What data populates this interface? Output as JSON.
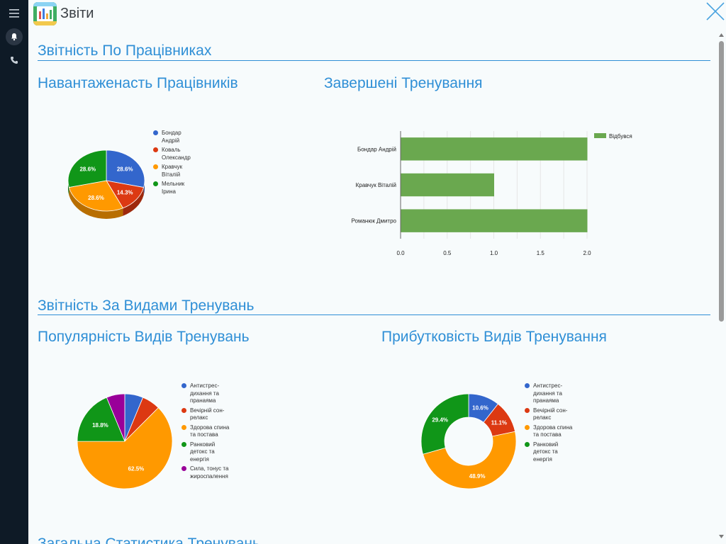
{
  "app": {
    "title": "Звіти"
  },
  "sections": [
    {
      "title": "Звітність По Працівниках"
    },
    {
      "title": "Звітність За Видами Тренувань"
    },
    {
      "title": "Загальна Статистика Тренувань"
    }
  ],
  "colors": {
    "blue": "#3366cc",
    "red": "#dc3912",
    "orange": "#ff9900",
    "green": "#109618",
    "purple": "#990099",
    "bar": "#6aa84f",
    "accent": "#2f8fd6"
  },
  "icons": {
    "menu": "menu-icon",
    "bell": "bell-icon",
    "phone": "phone-icon",
    "close": "close-icon"
  },
  "chart_data": [
    {
      "type": "pie",
      "title": "Навантаженасть Працівників",
      "slices": [
        {
          "name": "Бондар Андрій",
          "lines": [
            "Бондар",
            "Андрій"
          ],
          "percent": 28.6,
          "label": "28.6%"
        },
        {
          "name": "Коваль Олександр",
          "lines": [
            "Коваль",
            "Олександр"
          ],
          "percent": 14.3,
          "label": "14.3%"
        },
        {
          "name": "Кравчук Віталій",
          "lines": [
            "Кравчук",
            "Віталій"
          ],
          "percent": 28.6,
          "label": "28.6%"
        },
        {
          "name": "Мельник Ірина",
          "lines": [
            "Мельник",
            "Ірина"
          ],
          "percent": 28.6,
          "label": "28.6%"
        }
      ],
      "style": "3d",
      "legend": "right"
    },
    {
      "type": "bar",
      "orientation": "horizontal",
      "title": "Завершені Тренування",
      "categories": [
        "Бондар Андрій",
        "Кравчук Віталій",
        "Романюк Дмитро"
      ],
      "series": [
        {
          "name": "Відбувся",
          "values": [
            2,
            1,
            2
          ]
        }
      ],
      "xlim": [
        0,
        2
      ],
      "xticks": [
        "0.0",
        "0.5",
        "1.0",
        "1.5",
        "2.0"
      ],
      "grid": true,
      "legend": "top-right"
    },
    {
      "type": "pie",
      "title": "Популярність Видів Тренувань",
      "slices": [
        {
          "name": "Антистрес-дихання та пранаяма",
          "lines": [
            "Антистрес-",
            "дихання та",
            "пранаяма"
          ],
          "percent": 6.25,
          "label": ""
        },
        {
          "name": "Вечірній сон-релакс",
          "lines": [
            "Вечірній сон-",
            "релакс"
          ],
          "percent": 6.25,
          "label": ""
        },
        {
          "name": "Здорова спина та постава",
          "lines": [
            "Здорова спина",
            "та постава"
          ],
          "percent": 62.5,
          "label": "62.5%"
        },
        {
          "name": "Ранковий детокс та енергія",
          "lines": [
            "Ранковий",
            "детокс та",
            "енергія"
          ],
          "percent": 18.8,
          "label": "18.8%"
        },
        {
          "name": "Сила, тонус та жироспалення",
          "lines": [
            "Сила, тонус та",
            "жироспалення"
          ],
          "percent": 6.25,
          "label": ""
        }
      ],
      "legend": "right"
    },
    {
      "type": "pie",
      "donut": true,
      "title": "Прибутковість Видів Тренування",
      "slices": [
        {
          "name": "Антистрес-дихання та пранаяма",
          "lines": [
            "Антистрес-",
            "дихання та",
            "пранаяма"
          ],
          "percent": 10.6,
          "label": "10.6%"
        },
        {
          "name": "Вечірній сон-релакс",
          "lines": [
            "Вечірній сон-",
            "релакс"
          ],
          "percent": 11.1,
          "label": "11.1%"
        },
        {
          "name": "Здорова спина та постава",
          "lines": [
            "Здорова спина",
            "та постава"
          ],
          "percent": 48.9,
          "label": "48.9%"
        },
        {
          "name": "Ранковий детокс та енергія",
          "lines": [
            "Ранковий",
            "детокс та",
            "енергія"
          ],
          "percent": 29.4,
          "label": "29.4%"
        }
      ],
      "legend": "right"
    }
  ]
}
